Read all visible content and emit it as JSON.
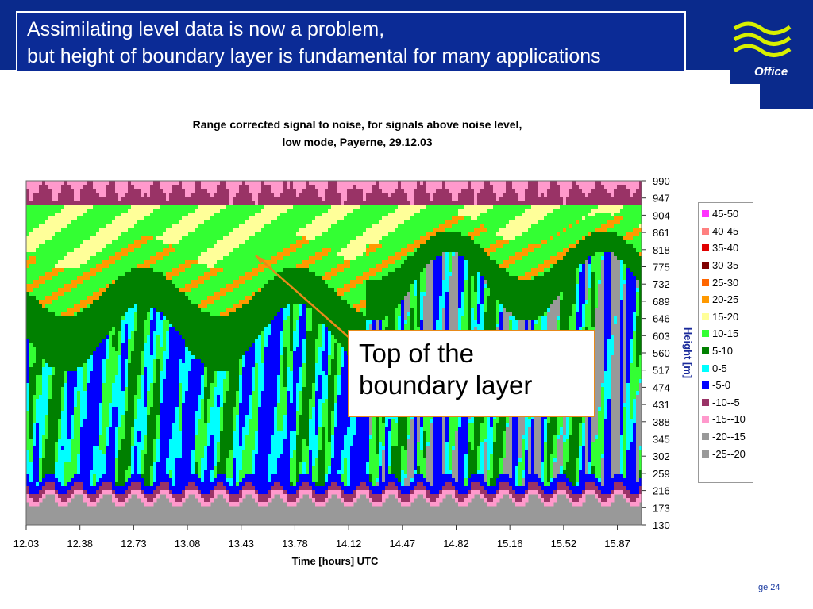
{
  "slide": {
    "title_line1": "Assimilating level data is now a problem,",
    "title_line2": "but height of boundary layer is fundamental for many applications",
    "logo_text": "Office",
    "page_label": "ge 24"
  },
  "annotation": {
    "line1": "Top of the",
    "line2": " boundary  layer"
  },
  "chart_data": {
    "type": "heatmap",
    "title": "Range corrected signal to noise, for signals above noise level,",
    "subtitle": "low mode,  Payerne, 29.12.03",
    "xlabel": "Time [hours] UTC",
    "ylabel": "Height  [m]",
    "x_ticks": [
      "12.03",
      "12.38",
      "12.73",
      "13.08",
      "13.43",
      "13.78",
      "14.12",
      "14.47",
      "14.82",
      "15.16",
      "15.52",
      "15.87"
    ],
    "y_ticks": [
      "990",
      "947",
      "904",
      "861",
      "818",
      "775",
      "732",
      "689",
      "646",
      "603",
      "560",
      "517",
      "474",
      "431",
      "388",
      "345",
      "302",
      "259",
      "216",
      "173",
      "130"
    ],
    "xlim": [
      12.03,
      16.0
    ],
    "ylim": [
      130,
      990
    ],
    "legend_placement": "right",
    "colors": {
      "45-50": "#ff33ff",
      "40-45": "#ff8080",
      "35-40": "#e00000",
      "30-35": "#800000",
      "25-30": "#ff6600",
      "20-25": "#ff9900",
      "15-20": "#ffff99",
      "10-15": "#33ff33",
      "5-10": "#008000",
      "0-5": "#00ffff",
      "-5-0": "#0000ff",
      "-10--5": "#993366",
      "-15--10": "#ff99cc",
      "-20--15": "#999999",
      "-25--20": "#999999"
    },
    "legend": [
      "45-50",
      "40-45",
      "35-40",
      "30-35",
      "25-30",
      "20-25",
      "15-20",
      "10-15",
      "5-10",
      "0-5",
      "-5-0",
      "-10--5",
      "-15--10",
      "-20--15",
      "-25--20"
    ]
  }
}
